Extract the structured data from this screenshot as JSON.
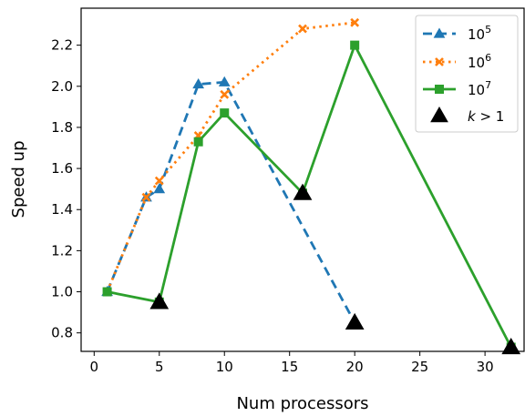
{
  "chart_data": {
    "type": "line",
    "title": "",
    "xlabel": "Num processors",
    "ylabel": "Speed up",
    "xlim": [
      -1,
      33
    ],
    "ylim": [
      0.71,
      2.38
    ],
    "xticks": [
      0,
      5,
      10,
      15,
      20,
      25,
      30
    ],
    "yticks": [
      0.8,
      1.0,
      1.2,
      1.4,
      1.6,
      1.8,
      2.0,
      2.2
    ],
    "ytick_labels": [
      "0.8",
      "1.0",
      "1.2",
      "1.4",
      "1.6",
      "1.8",
      "2.0",
      "2.2"
    ],
    "grid": false,
    "legend_position": "top-right",
    "series": [
      {
        "name_base": "10",
        "name_exp": "5",
        "color": "#1f77b4",
        "line_style": "dashed",
        "marker": "triangle",
        "x": [
          1,
          4,
          5,
          8,
          10,
          20
        ],
        "y": [
          1.0,
          1.46,
          1.5,
          2.01,
          2.02,
          0.85
        ]
      },
      {
        "name_base": "10",
        "name_exp": "6",
        "color": "#ff7f0e",
        "line_style": "dotted",
        "marker": "x",
        "x": [
          1,
          4,
          5,
          8,
          10,
          16,
          20
        ],
        "y": [
          1.0,
          1.46,
          1.54,
          1.76,
          1.96,
          2.28,
          2.31
        ]
      },
      {
        "name_base": "10",
        "name_exp": "7",
        "color": "#2ca02c",
        "line_style": "solid",
        "marker": "square",
        "x": [
          1,
          5,
          8,
          10,
          16,
          20,
          32
        ],
        "y": [
          1.0,
          0.95,
          1.73,
          1.87,
          1.48,
          2.2,
          0.73
        ]
      }
    ],
    "highlight": {
      "name": "k > 1",
      "name_var": "k",
      "name_rel": " > 1",
      "color": "#000000",
      "marker": "triangle",
      "points": [
        {
          "x": 5,
          "y": 0.95
        },
        {
          "x": 16,
          "y": 1.48
        },
        {
          "x": 20,
          "y": 0.85
        },
        {
          "x": 32,
          "y": 0.73
        }
      ]
    }
  }
}
